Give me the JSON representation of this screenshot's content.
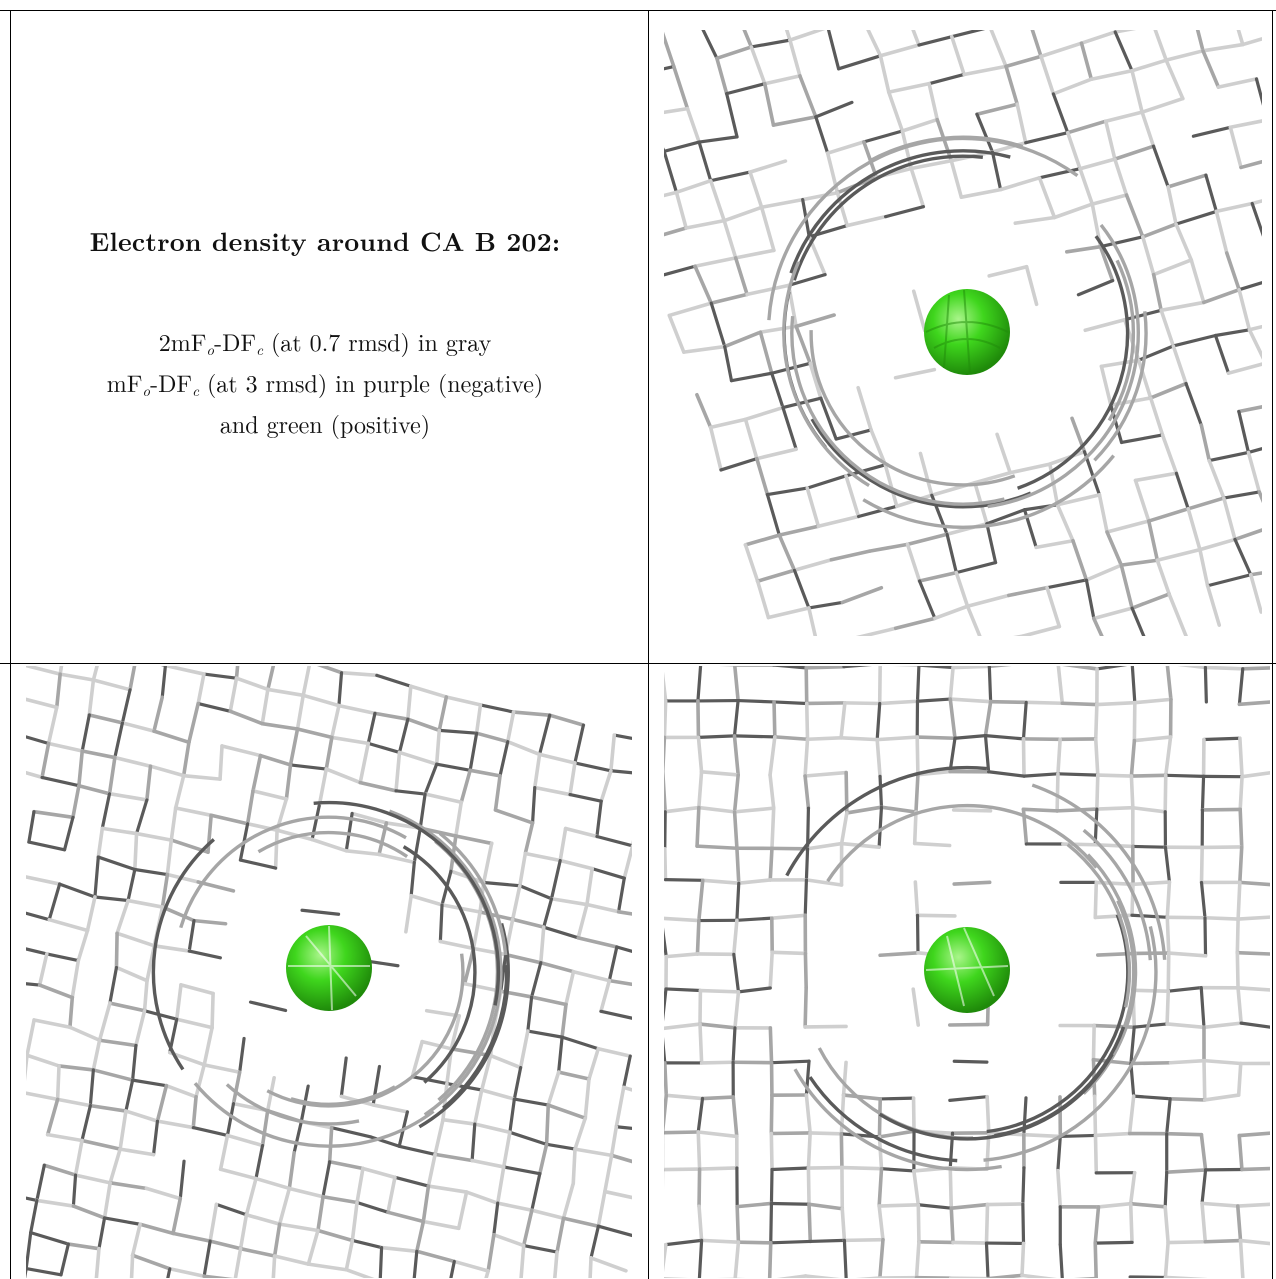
{
  "caption": {
    "title": "Electron density around CA B 202:",
    "line1": {
      "pre": "2mF",
      "sub1": "o",
      "mid": "-DF",
      "sub2": "c",
      "post": " (at 0.7 rmsd) in gray"
    },
    "line2": {
      "pre": "mF",
      "sub1": "o",
      "mid": "-DF",
      "sub2": "c",
      "post": " (at 3 rmsd) in purple (negative)"
    },
    "line3": "and green (positive)"
  },
  "colors": {
    "mesh_light": "#cfcfcf",
    "mesh_mid": "#a6a6a6",
    "mesh_dark": "#5a5a5a",
    "ion": "#33cc1a",
    "ion_highlight": "#9df27d",
    "border": "#000000"
  },
  "panels": [
    {
      "view": "top-right",
      "ion": "green calcium sphere"
    },
    {
      "view": "bottom-left",
      "ion": "green calcium sphere"
    },
    {
      "view": "bottom-right",
      "ion": "green calcium sphere"
    }
  ]
}
